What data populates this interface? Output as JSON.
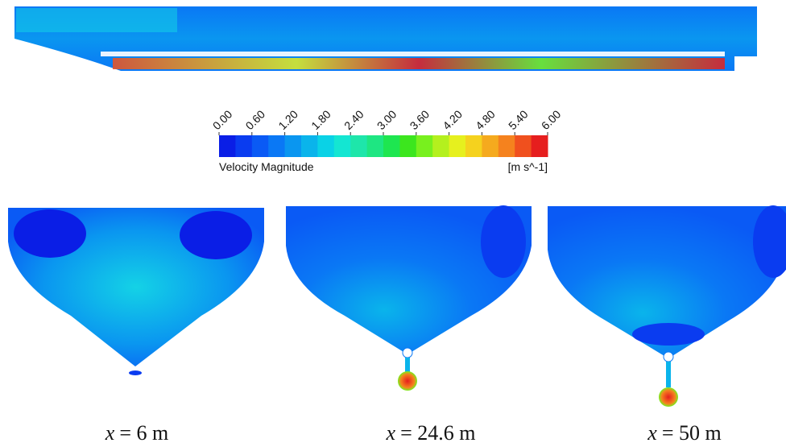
{
  "colorbar": {
    "title": "Velocity Magnitude",
    "unit": "[m s^-1]",
    "ticks": [
      {
        "value": 0,
        "label": "0.00"
      },
      {
        "value": 0.6,
        "label": "0.60"
      },
      {
        "value": 1.2,
        "label": "1.20"
      },
      {
        "value": 1.8,
        "label": "1.80"
      },
      {
        "value": 2.4,
        "label": "2.40"
      },
      {
        "value": 3,
        "label": "3.00"
      },
      {
        "value": 3.6,
        "label": "3.60"
      },
      {
        "value": 4.2,
        "label": "4.20"
      },
      {
        "value": 4.8,
        "label": "4.80"
      },
      {
        "value": 5.4,
        "label": "5.40"
      },
      {
        "value": 6,
        "label": "6.00"
      }
    ],
    "colors": [
      "#0a1ee6",
      "#0a3cf0",
      "#0a5af5",
      "#0a78f5",
      "#0a96f0",
      "#0ab4eb",
      "#0ad2e6",
      "#14e6d2",
      "#1ee6aa",
      "#1ee682",
      "#1ee650",
      "#3ce61e",
      "#78f01e",
      "#b4f01e",
      "#e6f01e",
      "#f5d21e",
      "#f5aa1e",
      "#f5821e",
      "#f0501e",
      "#e61e1e"
    ]
  },
  "captions": [
    {
      "symbol": "x",
      "text": "= 6 m"
    },
    {
      "symbol": "x",
      "text": "= 24.6 m"
    },
    {
      "symbol": "x",
      "text": "= 50 m"
    }
  ]
}
